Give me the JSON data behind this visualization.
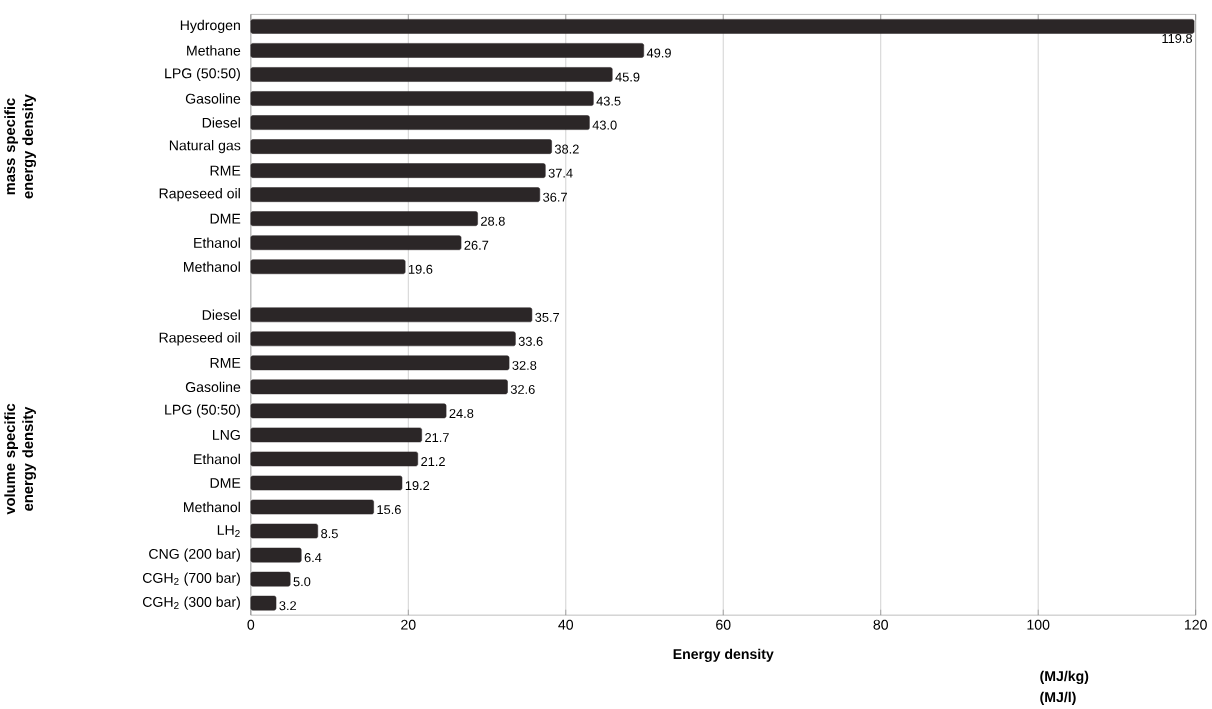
{
  "chart_data": {
    "type": "bar",
    "orientation": "horizontal",
    "categories": [
      "Hydrogen",
      "Methane",
      "LPG (50:50)",
      "Gasoline",
      "Diesel",
      "Natural gas",
      "RME",
      "Rapeseed oil",
      "DME",
      "Ethanol",
      "Methanol",
      null,
      "Diesel",
      "Rapeseed oil",
      "RME",
      "Gasoline",
      "LPG (50:50)",
      "LNG",
      "Ethanol",
      "DME",
      "Methanol",
      "LH$_{2}$",
      "CNG (200 bar)",
      "CGH$_{2}$ (700 bar)",
      "CGH$_{2}$ (300 bar)"
    ],
    "values": [
      119.8,
      49.9,
      45.9,
      43.5,
      43.0,
      38.2,
      37.4,
      36.7,
      28.8,
      26.7,
      19.6,
      null,
      35.7,
      33.6,
      32.8,
      32.6,
      24.8,
      21.7,
      21.2,
      19.2,
      15.6,
      8.5,
      6.4,
      5.0,
      3.2
    ],
    "value_labels": [
      "119.8",
      "49.9",
      "45.9",
      "43.5",
      "43.0",
      "38.2",
      "37.4",
      "36.7",
      "28.8",
      "26.7",
      "19.6",
      null,
      "35.7",
      "33.6",
      "32.8",
      "32.6",
      "24.8",
      "21.7",
      "21.2",
      "19.2",
      "15.6",
      "8.5",
      "6.4",
      "5.0",
      "3.2"
    ],
    "color": "#2b2627",
    "xlabel": "Energy density",
    "annotations": [
      "(MJ/kg)",
      "(MJ/l)",
      "mass specific energy density",
      "volume specific energy density"
    ],
    "xlim": [
      0,
      120
    ],
    "xticks": [
      0,
      20,
      40,
      60,
      80,
      100,
      120
    ],
    "grid": "x"
  }
}
